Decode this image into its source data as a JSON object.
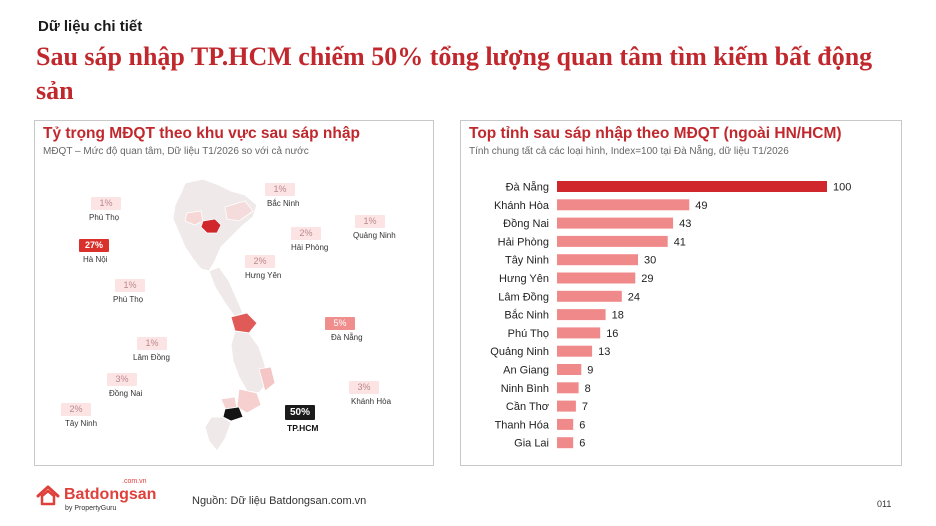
{
  "header": {
    "kicker": "Dữ liệu chi tiết",
    "headline": "Sau sáp nhập TP.HCM chiếm 50% tổng lượng quan tâm tìm kiếm bất động sản"
  },
  "map_panel": {
    "title": "Tỷ trọng MĐQT theo khu vực sau sáp nhập",
    "subtitle": "MĐQT – Mức độ quan tâm, Dữ liệu T1/2026 so với cả nước",
    "provinces": [
      {
        "name": "Phú Thọ",
        "share": "1%",
        "level": "light"
      },
      {
        "name": "Bắc Ninh",
        "share": "1%",
        "level": "light"
      },
      {
        "name": "Quảng Ninh",
        "share": "1%",
        "level": "light"
      },
      {
        "name": "Hải Phòng",
        "share": "2%",
        "level": "light"
      },
      {
        "name": "Hà Nội",
        "share": "27%",
        "level": "strong"
      },
      {
        "name": "Hưng Yên",
        "share": "2%",
        "level": "light"
      },
      {
        "name": "Phú Thọ",
        "share": "1%",
        "level": "light"
      },
      {
        "name": "Đà Nẵng",
        "share": "5%",
        "level": "mid"
      },
      {
        "name": "Lâm Đồng",
        "share": "1%",
        "level": "light"
      },
      {
        "name": "Đồng Nai",
        "share": "3%",
        "level": "light"
      },
      {
        "name": "Khánh Hòa",
        "share": "3%",
        "level": "light"
      },
      {
        "name": "Tây Ninh",
        "share": "2%",
        "level": "light"
      },
      {
        "name": "TP.HCM",
        "share": "50%",
        "level": "dark"
      }
    ]
  },
  "chart_panel": {
    "title": "Top tỉnh sau sáp nhập theo MĐQT (ngoài HN/HCM)",
    "subtitle": "Tính chung tất cả các loại hình, Index=100 tại Đà Nẵng, dữ liệu T1/2026"
  },
  "chart_data": {
    "type": "bar",
    "orientation": "horizontal",
    "categories": [
      "Đà Nẵng",
      "Khánh Hòa",
      "Đồng Nai",
      "Hải Phòng",
      "Tây Ninh",
      "Hưng Yên",
      "Lâm Đồng",
      "Bắc Ninh",
      "Phú Thọ",
      "Quảng Ninh",
      "An Giang",
      "Ninh Bình",
      "Cần Thơ",
      "Thanh Hóa",
      "Gia Lai"
    ],
    "values": [
      100,
      49,
      43,
      41,
      30,
      29,
      24,
      18,
      16,
      13,
      9,
      8,
      7,
      6,
      6
    ],
    "xlim": [
      0,
      100
    ],
    "grid": false,
    "legend": "none",
    "colors": {
      "top": "#d0272c",
      "rest": "#f08a8a"
    }
  },
  "footer": {
    "logo_text": "Batdongsan",
    "logo_tld": ".com.vn",
    "logo_sub": "by PropertyGuru",
    "source": "Nguồn: Dữ liệu Batdongsan.com.vn",
    "page": "011"
  },
  "colors": {
    "accent": "#c0282d",
    "map_base": "#efe9e9",
    "map_border": "#ffffff"
  }
}
